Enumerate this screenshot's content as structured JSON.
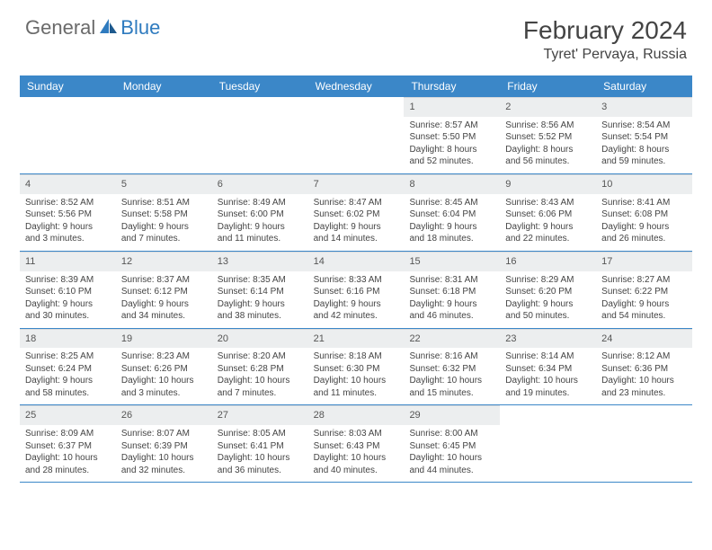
{
  "logo": {
    "general": "General",
    "blue": "Blue"
  },
  "title": "February 2024",
  "location": "Tyret' Pervaya, Russia",
  "colors": {
    "header_bg": "#3b87c8",
    "header_text": "#ffffff",
    "daynum_bg": "#eceeef",
    "divider": "#3b87c8",
    "text": "#444444",
    "logo_gray": "#6a6a6a",
    "logo_blue": "#2f7bbf"
  },
  "day_names": [
    "Sunday",
    "Monday",
    "Tuesday",
    "Wednesday",
    "Thursday",
    "Friday",
    "Saturday"
  ],
  "weeks": [
    [
      {
        "empty": true
      },
      {
        "empty": true
      },
      {
        "empty": true
      },
      {
        "empty": true
      },
      {
        "n": "1",
        "sr": "8:57 AM",
        "ss": "5:50 PM",
        "d1": "Daylight: 8 hours",
        "d2": "and 52 minutes."
      },
      {
        "n": "2",
        "sr": "8:56 AM",
        "ss": "5:52 PM",
        "d1": "Daylight: 8 hours",
        "d2": "and 56 minutes."
      },
      {
        "n": "3",
        "sr": "8:54 AM",
        "ss": "5:54 PM",
        "d1": "Daylight: 8 hours",
        "d2": "and 59 minutes."
      }
    ],
    [
      {
        "n": "4",
        "sr": "8:52 AM",
        "ss": "5:56 PM",
        "d1": "Daylight: 9 hours",
        "d2": "and 3 minutes."
      },
      {
        "n": "5",
        "sr": "8:51 AM",
        "ss": "5:58 PM",
        "d1": "Daylight: 9 hours",
        "d2": "and 7 minutes."
      },
      {
        "n": "6",
        "sr": "8:49 AM",
        "ss": "6:00 PM",
        "d1": "Daylight: 9 hours",
        "d2": "and 11 minutes."
      },
      {
        "n": "7",
        "sr": "8:47 AM",
        "ss": "6:02 PM",
        "d1": "Daylight: 9 hours",
        "d2": "and 14 minutes."
      },
      {
        "n": "8",
        "sr": "8:45 AM",
        "ss": "6:04 PM",
        "d1": "Daylight: 9 hours",
        "d2": "and 18 minutes."
      },
      {
        "n": "9",
        "sr": "8:43 AM",
        "ss": "6:06 PM",
        "d1": "Daylight: 9 hours",
        "d2": "and 22 minutes."
      },
      {
        "n": "10",
        "sr": "8:41 AM",
        "ss": "6:08 PM",
        "d1": "Daylight: 9 hours",
        "d2": "and 26 minutes."
      }
    ],
    [
      {
        "n": "11",
        "sr": "8:39 AM",
        "ss": "6:10 PM",
        "d1": "Daylight: 9 hours",
        "d2": "and 30 minutes."
      },
      {
        "n": "12",
        "sr": "8:37 AM",
        "ss": "6:12 PM",
        "d1": "Daylight: 9 hours",
        "d2": "and 34 minutes."
      },
      {
        "n": "13",
        "sr": "8:35 AM",
        "ss": "6:14 PM",
        "d1": "Daylight: 9 hours",
        "d2": "and 38 minutes."
      },
      {
        "n": "14",
        "sr": "8:33 AM",
        "ss": "6:16 PM",
        "d1": "Daylight: 9 hours",
        "d2": "and 42 minutes."
      },
      {
        "n": "15",
        "sr": "8:31 AM",
        "ss": "6:18 PM",
        "d1": "Daylight: 9 hours",
        "d2": "and 46 minutes."
      },
      {
        "n": "16",
        "sr": "8:29 AM",
        "ss": "6:20 PM",
        "d1": "Daylight: 9 hours",
        "d2": "and 50 minutes."
      },
      {
        "n": "17",
        "sr": "8:27 AM",
        "ss": "6:22 PM",
        "d1": "Daylight: 9 hours",
        "d2": "and 54 minutes."
      }
    ],
    [
      {
        "n": "18",
        "sr": "8:25 AM",
        "ss": "6:24 PM",
        "d1": "Daylight: 9 hours",
        "d2": "and 58 minutes."
      },
      {
        "n": "19",
        "sr": "8:23 AM",
        "ss": "6:26 PM",
        "d1": "Daylight: 10 hours",
        "d2": "and 3 minutes."
      },
      {
        "n": "20",
        "sr": "8:20 AM",
        "ss": "6:28 PM",
        "d1": "Daylight: 10 hours",
        "d2": "and 7 minutes."
      },
      {
        "n": "21",
        "sr": "8:18 AM",
        "ss": "6:30 PM",
        "d1": "Daylight: 10 hours",
        "d2": "and 11 minutes."
      },
      {
        "n": "22",
        "sr": "8:16 AM",
        "ss": "6:32 PM",
        "d1": "Daylight: 10 hours",
        "d2": "and 15 minutes."
      },
      {
        "n": "23",
        "sr": "8:14 AM",
        "ss": "6:34 PM",
        "d1": "Daylight: 10 hours",
        "d2": "and 19 minutes."
      },
      {
        "n": "24",
        "sr": "8:12 AM",
        "ss": "6:36 PM",
        "d1": "Daylight: 10 hours",
        "d2": "and 23 minutes."
      }
    ],
    [
      {
        "n": "25",
        "sr": "8:09 AM",
        "ss": "6:37 PM",
        "d1": "Daylight: 10 hours",
        "d2": "and 28 minutes."
      },
      {
        "n": "26",
        "sr": "8:07 AM",
        "ss": "6:39 PM",
        "d1": "Daylight: 10 hours",
        "d2": "and 32 minutes."
      },
      {
        "n": "27",
        "sr": "8:05 AM",
        "ss": "6:41 PM",
        "d1": "Daylight: 10 hours",
        "d2": "and 36 minutes."
      },
      {
        "n": "28",
        "sr": "8:03 AM",
        "ss": "6:43 PM",
        "d1": "Daylight: 10 hours",
        "d2": "and 40 minutes."
      },
      {
        "n": "29",
        "sr": "8:00 AM",
        "ss": "6:45 PM",
        "d1": "Daylight: 10 hours",
        "d2": "and 44 minutes."
      },
      {
        "empty": true
      },
      {
        "empty": true
      }
    ]
  ],
  "labels": {
    "sunrise": "Sunrise:",
    "sunset": "Sunset:"
  }
}
